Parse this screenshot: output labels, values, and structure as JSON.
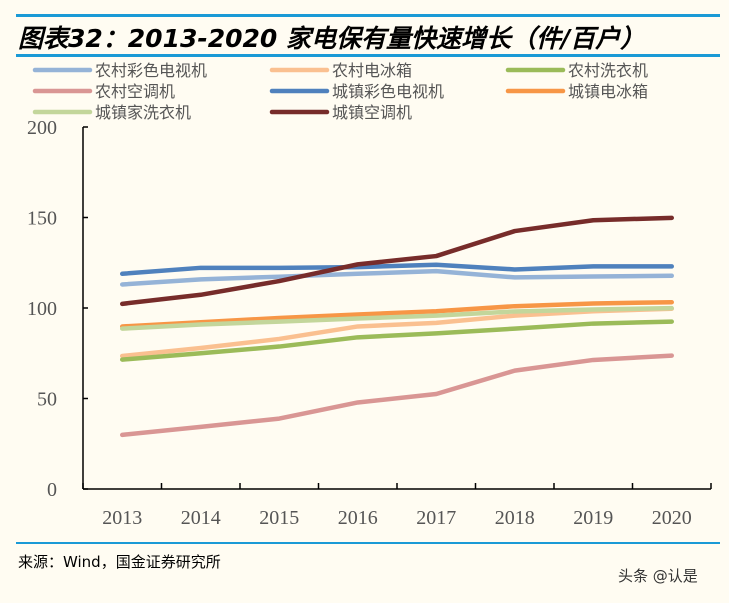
{
  "title": "图表32：2013-2020 家电保有量快速增长（件/百户）",
  "source": "来源：Wind，国金证券研究所",
  "watermark": "头条 @认是",
  "chart_data": {
    "type": "line",
    "title": "图表32：2013-2020 家电保有量快速增长（件/百户）",
    "categories": [
      "2013",
      "2014",
      "2015",
      "2016",
      "2017",
      "2018",
      "2019",
      "2020"
    ],
    "ylim": [
      0,
      200
    ],
    "yticks": [
      "0",
      "50",
      "100",
      "150",
      "200"
    ],
    "grid": false,
    "legend": "top",
    "series": [
      {
        "name": "农村彩色电视机",
        "color": "#95b3d7",
        "values": [
          113,
          115.8,
          117.3,
          118.9,
          120.4,
          116.9,
          117.4,
          117.8
        ]
      },
      {
        "name": "农村电冰箱",
        "color": "#fac090",
        "values": [
          73.5,
          77.9,
          82.9,
          89.8,
          91.8,
          95.8,
          98.2,
          99.6
        ]
      },
      {
        "name": "农村洗衣机",
        "color": "#9bbb59",
        "values": [
          71.5,
          75,
          78.7,
          83.8,
          86,
          88.6,
          91.4,
          92.5
        ]
      },
      {
        "name": "农村空调机",
        "color": "#d99694",
        "values": [
          29.9,
          34.3,
          38.9,
          47.8,
          52.5,
          65.4,
          71.3,
          73.7
        ]
      },
      {
        "name": "城镇彩色电视机",
        "color": "#4f81bd",
        "values": [
          118.9,
          122.2,
          122.2,
          122.6,
          123.9,
          121.3,
          123,
          123
        ]
      },
      {
        "name": "城镇电冰箱",
        "color": "#f79646",
        "values": [
          89.8,
          92.1,
          94.5,
          96.4,
          98.2,
          101,
          102.5,
          103.2
        ]
      },
      {
        "name": "城镇家洗衣机",
        "color": "#c3d69b",
        "values": [
          88.6,
          90.9,
          92.5,
          94.2,
          95.8,
          98.1,
          99.2,
          99.9
        ]
      },
      {
        "name": "城镇空调机",
        "color": "#772c2a",
        "values": [
          102.3,
          107.3,
          114.9,
          124.1,
          128.7,
          142.5,
          148.5,
          149.8
        ]
      }
    ]
  }
}
